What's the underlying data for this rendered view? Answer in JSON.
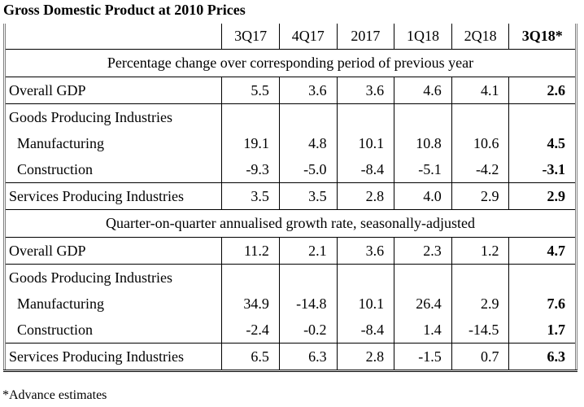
{
  "title": "Gross Domestic Product at 2010 Prices",
  "columns": [
    "3Q17",
    "4Q17",
    "2017",
    "1Q18",
    "2Q18",
    "3Q18*"
  ],
  "sections": [
    {
      "heading": "Percentage change over corresponding period of previous year",
      "rows": [
        {
          "label": "Overall GDP",
          "values": [
            "5.5",
            "3.6",
            "3.6",
            "4.6",
            "4.1",
            "2.6"
          ]
        },
        {
          "label": "Goods Producing Industries",
          "values": [
            "",
            "",
            "",
            "",
            "",
            ""
          ]
        },
        {
          "label": "Manufacturing",
          "values": [
            "19.1",
            "4.8",
            "10.1",
            "10.8",
            "10.6",
            "4.5"
          ]
        },
        {
          "label": "Construction",
          "values": [
            "-9.3",
            "-5.0",
            "-8.4",
            "-5.1",
            "-4.2",
            "-3.1"
          ]
        },
        {
          "label": "Services Producing Industries",
          "values": [
            "3.5",
            "3.5",
            "2.8",
            "4.0",
            "2.9",
            "2.9"
          ]
        }
      ]
    },
    {
      "heading": "Quarter-on-quarter annualised growth rate, seasonally-adjusted",
      "rows": [
        {
          "label": "Overall GDP",
          "values": [
            "11.2",
            "2.1",
            "3.6",
            "2.3",
            "1.2",
            "4.7"
          ]
        },
        {
          "label": "Goods Producing Industries",
          "values": [
            "",
            "",
            "",
            "",
            "",
            ""
          ]
        },
        {
          "label": "Manufacturing",
          "values": [
            "34.9",
            "-14.8",
            "10.1",
            "26.4",
            "2.9",
            "7.6"
          ]
        },
        {
          "label": "Construction",
          "values": [
            "-2.4",
            "-0.2",
            "-8.4",
            "1.4",
            "-14.5",
            "1.7"
          ]
        },
        {
          "label": "Services Producing Industries",
          "values": [
            "6.5",
            "6.3",
            "2.8",
            "-1.5",
            "0.7",
            "6.3"
          ]
        }
      ]
    }
  ],
  "footnote": "*Advance estimates"
}
